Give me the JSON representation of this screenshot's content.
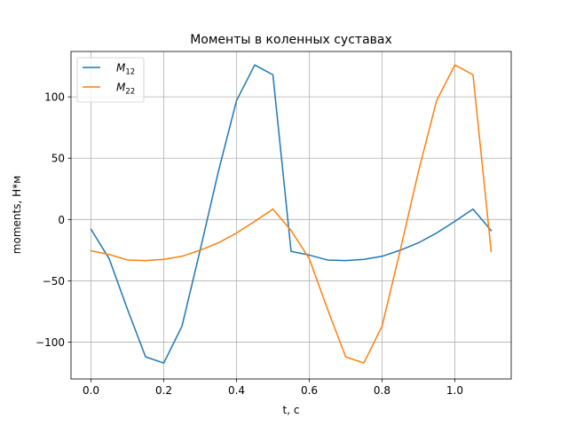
{
  "chart_data": {
    "type": "line",
    "title": "Моменты в коленных суставах",
    "xlabel": "t, c",
    "ylabel": "moments, Н*м",
    "xlim": [
      -0.055,
      1.155
    ],
    "ylim": [
      -130,
      137
    ],
    "xticks": [
      0.0,
      0.2,
      0.4,
      0.6,
      0.8,
      1.0
    ],
    "xtick_labels": [
      "0.0",
      "0.2",
      "0.4",
      "0.6",
      "0.8",
      "1.0"
    ],
    "yticks": [
      -100,
      -50,
      0,
      50,
      100
    ],
    "ytick_labels": [
      "−100",
      "−50",
      "0",
      "50",
      "100"
    ],
    "grid": true,
    "legend_position": "top-left",
    "x": [
      0.0,
      0.05,
      0.1,
      0.15,
      0.2,
      0.25,
      0.3,
      0.35,
      0.4,
      0.45,
      0.5,
      0.55,
      0.6,
      0.65,
      0.7,
      0.75,
      0.8,
      0.85,
      0.9,
      0.95,
      1.0,
      1.05,
      1.1
    ],
    "series": [
      {
        "name": "M",
        "subscript": "12",
        "color": "#1f77b4",
        "values": [
          -8,
          -32,
          -73,
          -112,
          -117,
          -87,
          -25,
          39,
          97,
          126,
          118,
          -26,
          -29,
          -33,
          -33.5,
          -32.5,
          -30,
          -25,
          -19,
          -11,
          -1.5,
          8.5,
          -9
        ]
      },
      {
        "name": "M",
        "subscript": "22",
        "color": "#ff7f0e",
        "values": [
          -25.5,
          -28.5,
          -33,
          -33.5,
          -32.5,
          -30,
          -25,
          -19,
          -11,
          -1.5,
          8.5,
          -9,
          -32,
          -73,
          -112,
          -117,
          -87,
          -25,
          39,
          97,
          126,
          118,
          -26
        ]
      }
    ]
  }
}
